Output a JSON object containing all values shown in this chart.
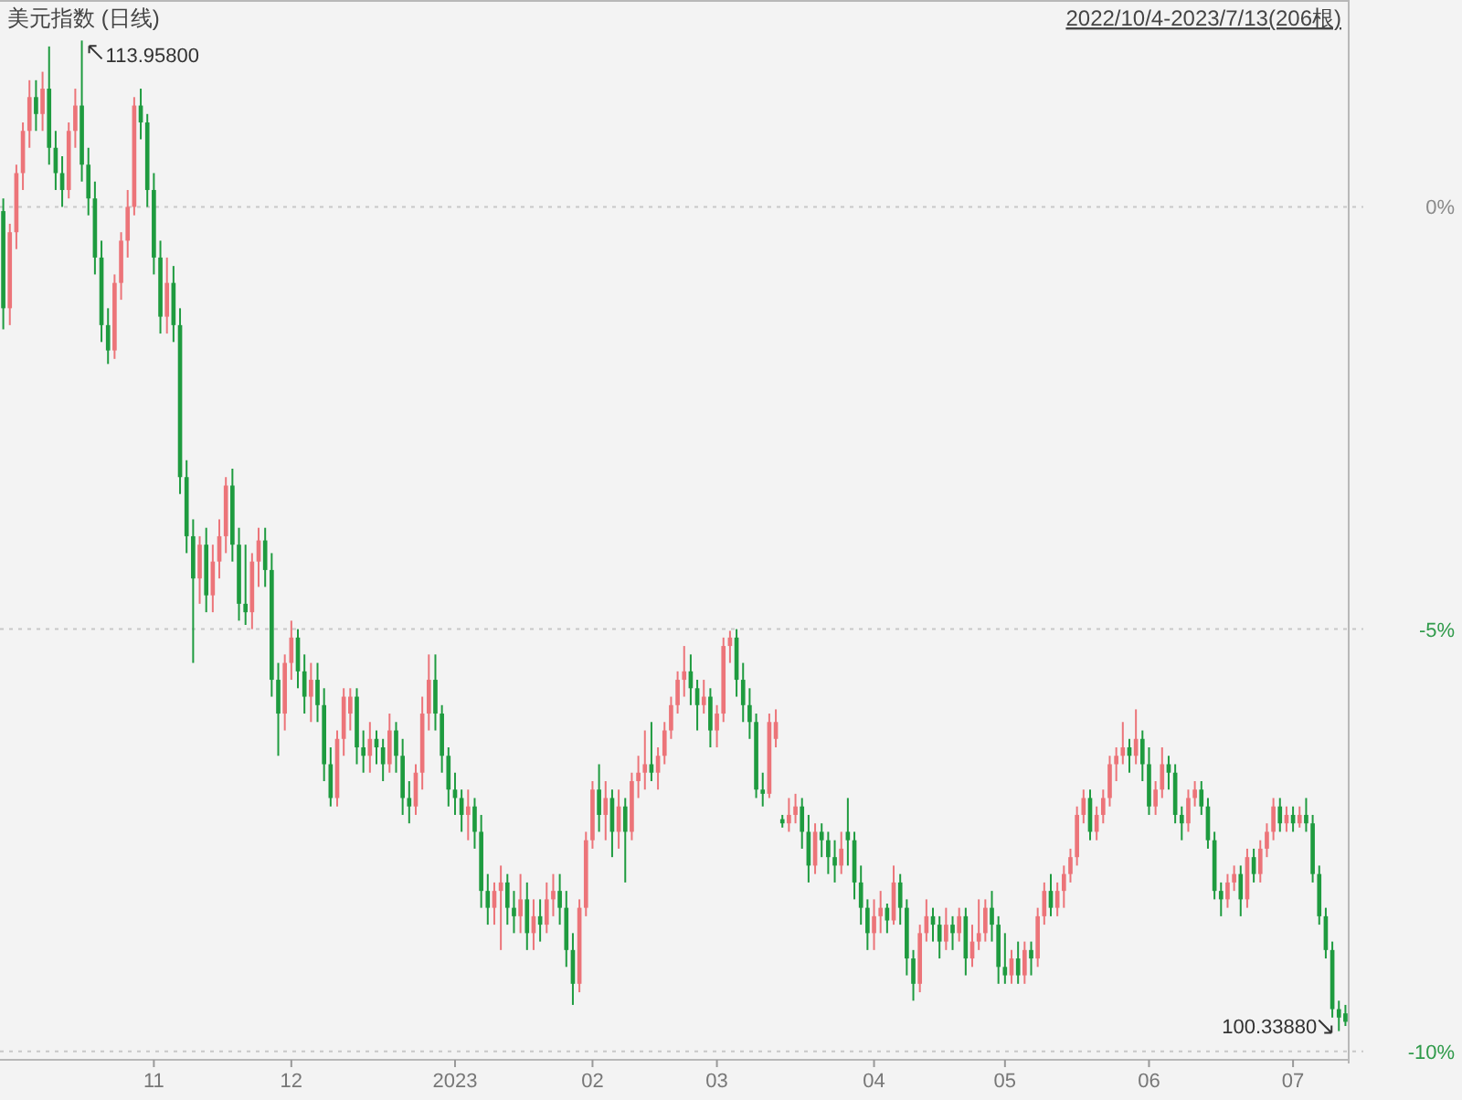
{
  "chart_data": {
    "type": "candlestick",
    "title": "美元指数 (日线)",
    "subtitle": "2022/10/4-2023/7/13(206根)",
    "categories": [
      null,
      null,
      null,
      null,
      null,
      null,
      null,
      null,
      null,
      null,
      null,
      null,
      null,
      null,
      null,
      null,
      null,
      null,
      null,
      null,
      null,
      null,
      null,
      "11",
      null,
      null,
      null,
      null,
      null,
      null,
      null,
      null,
      null,
      null,
      null,
      null,
      null,
      null,
      null,
      null,
      null,
      null,
      null,
      null,
      "12",
      null,
      null,
      null,
      null,
      null,
      null,
      null,
      null,
      null,
      null,
      null,
      null,
      null,
      null,
      null,
      null,
      null,
      null,
      null,
      null,
      null,
      null,
      null,
      null,
      "2023",
      null,
      null,
      null,
      null,
      null,
      null,
      null,
      null,
      null,
      null,
      null,
      null,
      null,
      null,
      null,
      null,
      null,
      null,
      null,
      null,
      "02",
      null,
      null,
      null,
      null,
      null,
      null,
      null,
      null,
      null,
      null,
      null,
      null,
      null,
      null,
      null,
      null,
      null,
      null,
      "03",
      null,
      null,
      null,
      null,
      null,
      null,
      null,
      null,
      null,
      null,
      null,
      null,
      null,
      null,
      null,
      null,
      null,
      null,
      null,
      null,
      null,
      null,
      null,
      "04",
      null,
      null,
      null,
      null,
      null,
      null,
      null,
      null,
      null,
      null,
      null,
      null,
      null,
      null,
      null,
      null,
      null,
      null,
      null,
      "05",
      null,
      null,
      null,
      null,
      null,
      null,
      null,
      null,
      null,
      null,
      null,
      null,
      null,
      null,
      null,
      null,
      null,
      null,
      null,
      null,
      null,
      "06",
      null,
      null,
      null,
      null,
      null,
      null,
      null,
      null,
      null,
      null,
      null,
      null,
      null,
      null,
      null,
      null,
      null,
      null,
      null,
      null,
      null,
      "07",
      null,
      null,
      null,
      null,
      null,
      null,
      null,
      null
    ],
    "ohlc": [
      [
        -0.05,
        0.1,
        -1.45,
        -1.2
      ],
      [
        -1.2,
        -0.2,
        -1.4,
        -0.3
      ],
      [
        -0.3,
        0.5,
        -0.5,
        0.4
      ],
      [
        0.4,
        1.0,
        0.2,
        0.9
      ],
      [
        0.9,
        1.5,
        0.7,
        1.3
      ],
      [
        1.3,
        1.5,
        0.9,
        1.1
      ],
      [
        1.1,
        1.6,
        0.9,
        1.4
      ],
      [
        1.4,
        1.9,
        0.5,
        0.7
      ],
      [
        0.7,
        0.9,
        0.2,
        0.4
      ],
      [
        0.4,
        0.6,
        0.0,
        0.2
      ],
      [
        0.2,
        1.0,
        0.1,
        0.9
      ],
      [
        0.9,
        1.4,
        0.7,
        1.2
      ],
      [
        1.2,
        1.97,
        0.3,
        0.5
      ],
      [
        0.5,
        0.7,
        -0.1,
        0.1
      ],
      [
        0.1,
        0.3,
        -0.8,
        -0.6
      ],
      [
        -0.6,
        -0.4,
        -1.6,
        -1.4
      ],
      [
        -1.4,
        -1.2,
        -1.86,
        -1.7
      ],
      [
        -1.7,
        -0.8,
        -1.8,
        -0.9
      ],
      [
        -0.9,
        -0.3,
        -1.1,
        -0.4
      ],
      [
        -0.4,
        0.2,
        -0.6,
        0.0
      ],
      [
        0.0,
        1.3,
        -0.1,
        1.2
      ],
      [
        1.2,
        1.4,
        0.8,
        1.0
      ],
      [
        1.0,
        1.1,
        0.0,
        0.2
      ],
      [
        0.2,
        0.4,
        -0.8,
        -0.6
      ],
      [
        -0.6,
        -0.4,
        -1.5,
        -1.3
      ],
      [
        -1.3,
        -0.6,
        -1.5,
        -0.9
      ],
      [
        -0.9,
        -0.7,
        -1.6,
        -1.4
      ],
      [
        -1.4,
        -1.2,
        -3.4,
        -3.2
      ],
      [
        -3.2,
        -3.0,
        -4.1,
        -3.9
      ],
      [
        -3.9,
        -3.7,
        -5.4,
        -4.4
      ],
      [
        -4.4,
        -3.9,
        -4.7,
        -4.0
      ],
      [
        -4.0,
        -3.8,
        -4.8,
        -4.6
      ],
      [
        -4.6,
        -4.0,
        -4.8,
        -4.2
      ],
      [
        -4.2,
        -3.7,
        -4.4,
        -3.9
      ],
      [
        -3.9,
        -3.2,
        -4.1,
        -3.3
      ],
      [
        -3.3,
        -3.1,
        -4.2,
        -4.0
      ],
      [
        -4.0,
        -3.8,
        -4.9,
        -4.7
      ],
      [
        -4.7,
        -4.0,
        -4.95,
        -4.8
      ],
      [
        -4.8,
        -4.1,
        -5.0,
        -4.2
      ],
      [
        -4.2,
        -3.8,
        -4.5,
        -3.95
      ],
      [
        -3.95,
        -3.8,
        -4.5,
        -4.3
      ],
      [
        -4.3,
        -4.1,
        -5.8,
        -5.6
      ],
      [
        -5.6,
        -5.4,
        -6.5,
        -6.0
      ],
      [
        -6.0,
        -5.3,
        -6.2,
        -5.4
      ],
      [
        -5.4,
        -4.9,
        -5.6,
        -5.1
      ],
      [
        -5.1,
        -5.0,
        -5.7,
        -5.5
      ],
      [
        -5.5,
        -5.3,
        -6.0,
        -5.8
      ],
      [
        -5.8,
        -5.4,
        -6.1,
        -5.6
      ],
      [
        -5.6,
        -5.4,
        -6.1,
        -5.9
      ],
      [
        -5.9,
        -5.7,
        -6.8,
        -6.6
      ],
      [
        -6.6,
        -6.4,
        -7.1,
        -7.0
      ],
      [
        -7.0,
        -6.2,
        -7.1,
        -6.3
      ],
      [
        -6.3,
        -5.7,
        -6.5,
        -5.8
      ],
      [
        -6.0,
        -5.7,
        -6.2,
        -5.8
      ],
      [
        -5.8,
        -5.7,
        -6.6,
        -6.4
      ],
      [
        -6.4,
        -6.2,
        -6.7,
        -6.5
      ],
      [
        -6.5,
        -6.1,
        -6.7,
        -6.3
      ],
      [
        -6.3,
        -6.2,
        -6.6,
        -6.4
      ],
      [
        -6.4,
        -6.3,
        -6.8,
        -6.6
      ],
      [
        -6.6,
        -6.0,
        -6.7,
        -6.2
      ],
      [
        -6.2,
        -6.1,
        -6.7,
        -6.5
      ],
      [
        -6.5,
        -6.3,
        -7.2,
        -7.0
      ],
      [
        -7.0,
        -6.8,
        -7.3,
        -7.1
      ],
      [
        -7.1,
        -6.6,
        -7.2,
        -6.7
      ],
      [
        -6.7,
        -5.8,
        -6.9,
        -6.0
      ],
      [
        -6.0,
        -5.3,
        -6.2,
        -5.6
      ],
      [
        -5.6,
        -5.3,
        -6.2,
        -6.0
      ],
      [
        -6.0,
        -5.9,
        -6.7,
        -6.5
      ],
      [
        -6.5,
        -6.4,
        -7.1,
        -6.9
      ],
      [
        -6.9,
        -6.7,
        -7.2,
        -7.0
      ],
      [
        -7.0,
        -6.9,
        -7.4,
        -7.2
      ],
      [
        -7.2,
        -6.9,
        -7.5,
        -7.1
      ],
      [
        -7.1,
        -7.0,
        -7.6,
        -7.4
      ],
      [
        -7.4,
        -7.2,
        -8.3,
        -8.1
      ],
      [
        -8.1,
        -7.9,
        -8.5,
        -8.3
      ],
      [
        -8.3,
        -8.0,
        -8.5,
        -8.1
      ],
      [
        -8.1,
        -7.8,
        -8.8,
        -8.0
      ],
      [
        -8.0,
        -7.9,
        -8.5,
        -8.3
      ],
      [
        -8.3,
        -8.1,
        -8.6,
        -8.4
      ],
      [
        -8.4,
        -7.9,
        -8.6,
        -8.2
      ],
      [
        -8.2,
        -8.0,
        -8.8,
        -8.6
      ],
      [
        -8.6,
        -8.2,
        -8.8,
        -8.4
      ],
      [
        -8.4,
        -8.2,
        -8.7,
        -8.5
      ],
      [
        -8.5,
        -8.0,
        -8.6,
        -8.2
      ],
      [
        -8.2,
        -7.9,
        -8.4,
        -8.1
      ],
      [
        -8.1,
        -7.9,
        -8.5,
        -8.3
      ],
      [
        -8.3,
        -8.1,
        -9.0,
        -8.8
      ],
      [
        -8.8,
        -8.6,
        -9.45,
        -9.2
      ],
      [
        -9.2,
        -8.2,
        -9.3,
        -8.3
      ],
      [
        -8.3,
        -7.4,
        -8.4,
        -7.5
      ],
      [
        -7.5,
        -6.8,
        -7.6,
        -6.9
      ],
      [
        -6.9,
        -6.6,
        -7.4,
        -7.2
      ],
      [
        -7.2,
        -6.8,
        -7.5,
        -7.0
      ],
      [
        -7.0,
        -6.9,
        -7.7,
        -7.4
      ],
      [
        -7.4,
        -6.9,
        -7.6,
        -7.1
      ],
      [
        -7.1,
        -7.0,
        -8.0,
        -7.4
      ],
      [
        -7.4,
        -6.7,
        -7.5,
        -6.8
      ],
      [
        -6.8,
        -6.5,
        -7.0,
        -6.7
      ],
      [
        -6.7,
        -6.2,
        -6.9,
        -6.6
      ],
      [
        -6.6,
        -6.1,
        -6.8,
        -6.7
      ],
      [
        -6.7,
        -6.4,
        -6.9,
        -6.5
      ],
      [
        -6.5,
        -6.1,
        -6.6,
        -6.2
      ],
      [
        -6.2,
        -5.8,
        -6.3,
        -5.9
      ],
      [
        -5.9,
        -5.5,
        -6.0,
        -5.6
      ],
      [
        -5.6,
        -5.2,
        -5.8,
        -5.5
      ],
      [
        -5.5,
        -5.3,
        -5.9,
        -5.7
      ],
      [
        -5.7,
        -5.6,
        -6.2,
        -5.9
      ],
      [
        -5.9,
        -5.6,
        -6.0,
        -5.8
      ],
      [
        -5.8,
        -5.7,
        -6.4,
        -6.2
      ],
      [
        -6.2,
        -5.9,
        -6.4,
        -6.0
      ],
      [
        -6.0,
        -5.1,
        -6.1,
        -5.2
      ],
      [
        -5.2,
        -5.02,
        -5.4,
        -5.1
      ],
      [
        -5.1,
        -5.0,
        -5.8,
        -5.6
      ],
      [
        -5.6,
        -5.4,
        -6.1,
        -5.9
      ],
      [
        -5.9,
        -5.7,
        -6.3,
        -6.1
      ],
      [
        -6.1,
        -6.0,
        -7.0,
        -6.9
      ],
      [
        -6.9,
        -6.7,
        -7.1,
        -6.95
      ],
      [
        -6.95,
        -6.0,
        -7.0,
        -6.1
      ],
      [
        -6.3,
        -5.95,
        -6.4,
        -6.1
      ],
      [
        -7.25,
        -7.2,
        -7.35,
        -7.3
      ],
      [
        -7.3,
        -7.0,
        -7.4,
        -7.2
      ],
      [
        -7.2,
        -6.95,
        -7.3,
        -7.1
      ],
      [
        -7.1,
        -7.0,
        -7.6,
        -7.4
      ],
      [
        -7.4,
        -7.2,
        -8.0,
        -7.8
      ],
      [
        -7.8,
        -7.3,
        -7.9,
        -7.4
      ],
      [
        -7.4,
        -7.3,
        -7.7,
        -7.5
      ],
      [
        -7.5,
        -7.4,
        -7.9,
        -7.7
      ],
      [
        -7.7,
        -7.5,
        -8.0,
        -7.8
      ],
      [
        -7.8,
        -7.4,
        -7.9,
        -7.6
      ],
      [
        -7.4,
        -7.0,
        -7.8,
        -7.5
      ],
      [
        -7.5,
        -7.4,
        -8.2,
        -8.0
      ],
      [
        -8.0,
        -7.8,
        -8.5,
        -8.3
      ],
      [
        -8.3,
        -8.2,
        -8.8,
        -8.6
      ],
      [
        -8.6,
        -8.2,
        -8.8,
        -8.4
      ],
      [
        -8.4,
        -8.1,
        -8.6,
        -8.3
      ],
      [
        -8.3,
        -8.25,
        -8.6,
        -8.45
      ],
      [
        -8.45,
        -7.8,
        -8.5,
        -8.0
      ],
      [
        -8.0,
        -7.9,
        -8.5,
        -8.3
      ],
      [
        -8.3,
        -8.2,
        -9.1,
        -8.9
      ],
      [
        -8.9,
        -8.8,
        -9.4,
        -9.2
      ],
      [
        -9.2,
        -8.5,
        -9.3,
        -8.6
      ],
      [
        -8.6,
        -8.2,
        -8.7,
        -8.4
      ],
      [
        -8.4,
        -8.3,
        -8.7,
        -8.5
      ],
      [
        -8.5,
        -8.4,
        -8.9,
        -8.7
      ],
      [
        -8.7,
        -8.3,
        -8.8,
        -8.5
      ],
      [
        -8.5,
        -8.4,
        -8.8,
        -8.6
      ],
      [
        -8.6,
        -8.3,
        -8.7,
        -8.4
      ],
      [
        -8.4,
        -8.3,
        -9.1,
        -8.9
      ],
      [
        -8.9,
        -8.5,
        -9.0,
        -8.7
      ],
      [
        -8.7,
        -8.2,
        -8.8,
        -8.6
      ],
      [
        -8.6,
        -8.2,
        -8.7,
        -8.3
      ],
      [
        -8.3,
        -8.1,
        -8.7,
        -8.5
      ],
      [
        -8.5,
        -8.4,
        -9.2,
        -9.0
      ],
      [
        -9.0,
        -8.6,
        -9.2,
        -9.1
      ],
      [
        -9.1,
        -8.8,
        -9.2,
        -8.9
      ],
      [
        -8.9,
        -8.7,
        -9.2,
        -9.1
      ],
      [
        -9.1,
        -8.7,
        -9.2,
        -8.8
      ],
      [
        -8.8,
        -8.7,
        -9.1,
        -8.9
      ],
      [
        -8.9,
        -8.3,
        -9.0,
        -8.4
      ],
      [
        -8.4,
        -8.0,
        -8.5,
        -8.1
      ],
      [
        -8.1,
        -7.9,
        -8.4,
        -8.3
      ],
      [
        -8.3,
        -8.0,
        -8.4,
        -8.1
      ],
      [
        -8.1,
        -7.8,
        -8.3,
        -7.9
      ],
      [
        -7.9,
        -7.6,
        -8.0,
        -7.7
      ],
      [
        -7.7,
        -7.1,
        -7.8,
        -7.2
      ],
      [
        -7.2,
        -6.9,
        -7.3,
        -7.0
      ],
      [
        -7.0,
        -6.9,
        -7.5,
        -7.4
      ],
      [
        -7.4,
        -7.1,
        -7.5,
        -7.2
      ],
      [
        -7.2,
        -6.9,
        -7.3,
        -7.0
      ],
      [
        -7.0,
        -6.5,
        -7.1,
        -6.6
      ],
      [
        -6.6,
        -6.4,
        -6.8,
        -6.5
      ],
      [
        -6.5,
        -6.1,
        -6.6,
        -6.4
      ],
      [
        -6.4,
        -6.3,
        -6.7,
        -6.5
      ],
      [
        -6.5,
        -5.95,
        -6.6,
        -6.3
      ],
      [
        -6.3,
        -6.2,
        -6.8,
        -6.6
      ],
      [
        -6.6,
        -6.4,
        -7.2,
        -7.1
      ],
      [
        -7.1,
        -6.8,
        -7.2,
        -6.9
      ],
      [
        -6.9,
        -6.4,
        -7.0,
        -6.6
      ],
      [
        -6.6,
        -6.5,
        -6.9,
        -6.7
      ],
      [
        -6.7,
        -6.6,
        -7.3,
        -7.2
      ],
      [
        -7.2,
        -7.1,
        -7.5,
        -7.3
      ],
      [
        -7.3,
        -6.9,
        -7.4,
        -7.0
      ],
      [
        -7.0,
        -6.8,
        -7.1,
        -6.9
      ],
      [
        -6.9,
        -6.8,
        -7.2,
        -7.1
      ],
      [
        -7.1,
        -7.0,
        -7.6,
        -7.5
      ],
      [
        -7.5,
        -7.4,
        -8.2,
        -8.1
      ],
      [
        -8.1,
        -8.0,
        -8.4,
        -8.2
      ],
      [
        -8.2,
        -7.9,
        -8.3,
        -8.0
      ],
      [
        -8.0,
        -7.8,
        -8.1,
        -7.9
      ],
      [
        -7.9,
        -7.8,
        -8.4,
        -8.2
      ],
      [
        -8.2,
        -7.6,
        -8.3,
        -7.7
      ],
      [
        -7.7,
        -7.6,
        -8.0,
        -7.9
      ],
      [
        -7.9,
        -7.5,
        -8.0,
        -7.6
      ],
      [
        -7.6,
        -7.3,
        -7.7,
        -7.4
      ],
      [
        -7.4,
        -7.0,
        -7.5,
        -7.1
      ],
      [
        -7.1,
        -7.0,
        -7.4,
        -7.3
      ],
      [
        -7.3,
        -7.1,
        -7.4,
        -7.2
      ],
      [
        -7.2,
        -7.1,
        -7.4,
        -7.3
      ],
      [
        -7.3,
        -7.1,
        -7.35,
        -7.2
      ],
      [
        -7.2,
        -7.0,
        -7.4,
        -7.3
      ],
      [
        -7.3,
        -7.2,
        -8.0,
        -7.9
      ],
      [
        -7.9,
        -7.8,
        -8.5,
        -8.4
      ],
      [
        -8.4,
        -8.3,
        -8.9,
        -8.8
      ],
      [
        -8.8,
        -8.7,
        -9.6,
        -9.5
      ],
      [
        -9.5,
        -9.4,
        -9.76,
        -9.6
      ],
      [
        -9.55,
        -9.45,
        -9.7,
        -9.65
      ]
    ],
    "ylim": [
      -10.1,
      2.45
    ],
    "yticks": [
      {
        "value": 0,
        "label": "0%"
      },
      {
        "value": -5,
        "label": "-5%"
      },
      {
        "value": -10,
        "label": "-10%"
      }
    ],
    "grid": "y",
    "annotations": [
      "113.95800",
      "100.33880"
    ]
  }
}
